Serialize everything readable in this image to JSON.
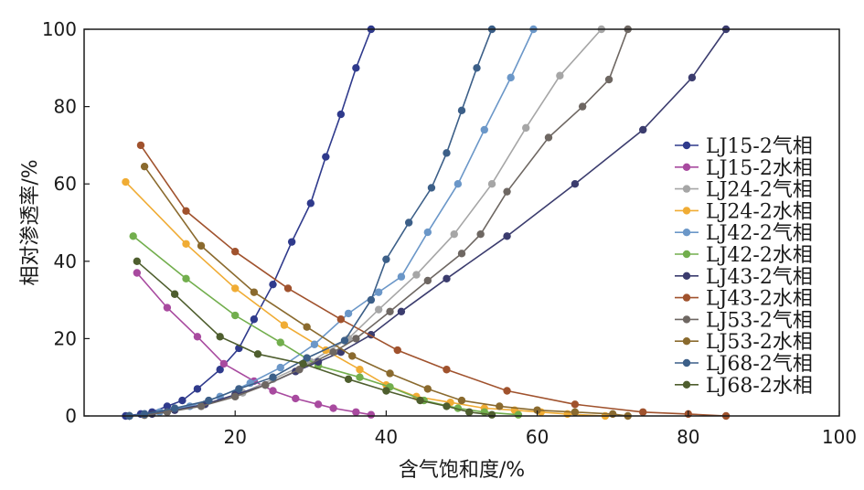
{
  "chart_data": {
    "type": "line",
    "xlabel": "含气饱和度/%",
    "ylabel": "相对渗透率/%",
    "xlim": [
      0,
      100
    ],
    "ylim": [
      0,
      100
    ],
    "xticks": [
      20,
      40,
      60,
      80,
      100
    ],
    "yticks": [
      0,
      20,
      40,
      60,
      80,
      100
    ],
    "grid": false,
    "legend_position": "right",
    "series": [
      {
        "name": "LJ15-2气相",
        "color": "#2f3a8c",
        "x": [
          5.5,
          7.5,
          9,
          11,
          13,
          15,
          18,
          20.5,
          22.5,
          25,
          27.5,
          30,
          32,
          34,
          36,
          38
        ],
        "y": [
          0,
          0.5,
          1,
          2.5,
          4,
          7,
          12,
          17.5,
          25,
          34,
          45,
          55,
          67,
          78,
          90,
          100
        ]
      },
      {
        "name": "LJ15-2水相",
        "color": "#a84a9f",
        "x": [
          7,
          11,
          15,
          18.5,
          22.5,
          25,
          28,
          31,
          33,
          36,
          38
        ],
        "y": [
          37,
          28,
          20.5,
          13.5,
          9,
          6.5,
          4.5,
          3,
          2,
          1,
          0.3
        ]
      },
      {
        "name": "LJ24-2气相",
        "color": "#a6a6a6",
        "x": [
          6,
          8,
          12,
          16,
          21,
          25,
          30,
          35,
          39,
          44,
          49,
          54,
          58.5,
          63,
          68.5
        ],
        "y": [
          0,
          0.3,
          1.5,
          3,
          6,
          9.5,
          14,
          20,
          27.5,
          36.5,
          47,
          60,
          74.5,
          88,
          100
        ]
      },
      {
        "name": "LJ24-2水相",
        "color": "#f0ac34",
        "x": [
          5.5,
          13.5,
          20,
          26.5,
          32,
          36.5,
          40,
          44,
          48.5,
          53,
          57,
          60.5,
          64,
          69
        ],
        "y": [
          60.5,
          44.5,
          33,
          23.5,
          17,
          12,
          8,
          5,
          3.5,
          2,
          1.5,
          1,
          0.5,
          0
        ]
      },
      {
        "name": "LJ42-2气相",
        "color": "#6b97c8",
        "x": [
          6,
          8,
          10,
          14,
          18,
          22,
          26,
          30.5,
          35,
          39,
          42,
          45.5,
          49.5,
          53,
          56.5,
          59.5
        ],
        "y": [
          0,
          0.5,
          1,
          2.5,
          5,
          8.5,
          12.5,
          18.5,
          26.5,
          32,
          36,
          47.5,
          60,
          74,
          87.5,
          100
        ]
      },
      {
        "name": "LJ42-2水相",
        "color": "#72ae4d",
        "x": [
          6.5,
          13.5,
          20,
          26,
          31,
          36.5,
          40.5,
          45,
          49.5,
          53,
          57.5
        ],
        "y": [
          46.5,
          35.5,
          26,
          19,
          13,
          10,
          7.5,
          4,
          2,
          1,
          0.3
        ]
      },
      {
        "name": "LJ43-2气相",
        "color": "#3b3c6e",
        "x": [
          6,
          9,
          12,
          16,
          20,
          24,
          28,
          31,
          34,
          38,
          42,
          48,
          56,
          65,
          74,
          80.5,
          85
        ],
        "y": [
          0,
          0.5,
          1.5,
          3,
          5.5,
          8,
          11.5,
          14,
          16.5,
          21,
          27,
          35.5,
          46.5,
          60,
          74,
          87.5,
          100
        ]
      },
      {
        "name": "LJ43-2水相",
        "color": "#a0522d",
        "x": [
          7.5,
          13.5,
          20,
          27,
          34,
          41.5,
          48,
          56,
          65,
          74,
          80,
          85
        ],
        "y": [
          70,
          53,
          42.5,
          33,
          25,
          17,
          12,
          6.5,
          3,
          1,
          0.5,
          0
        ]
      },
      {
        "name": "LJ53-2气相",
        "color": "#6e6762",
        "x": [
          6,
          8,
          11,
          15.5,
          20,
          24,
          28.5,
          33,
          36,
          40.5,
          45.5,
          50,
          52.5,
          56,
          61.5,
          66,
          69.5,
          72
        ],
        "y": [
          0,
          0.2,
          1,
          2.5,
          5,
          8,
          12,
          16.5,
          20,
          27,
          35,
          42,
          47,
          58,
          72,
          80,
          87,
          100
        ]
      },
      {
        "name": "LJ53-2水相",
        "color": "#8a6a2e",
        "x": [
          8,
          15.5,
          22.5,
          29.5,
          35.5,
          40.5,
          45.5,
          50,
          55,
          60,
          65,
          70,
          72
        ],
        "y": [
          64.5,
          44,
          32,
          23,
          15.5,
          11,
          7,
          4,
          2.5,
          1.5,
          1,
          0.5,
          0
        ]
      },
      {
        "name": "LJ68-2气相",
        "color": "#3c5f88",
        "x": [
          6,
          8,
          12,
          16.5,
          20.5,
          25,
          29.5,
          34.5,
          38,
          40,
          43,
          46,
          48,
          50,
          52,
          54
        ],
        "y": [
          0,
          0.5,
          2,
          4,
          7,
          10,
          15,
          19.5,
          30,
          40.5,
          50,
          59,
          68,
          79,
          90,
          100
        ]
      },
      {
        "name": "LJ68-2水相",
        "color": "#4e5e2e",
        "x": [
          7,
          12,
          18,
          23,
          29,
          35,
          40,
          44.5,
          48,
          51,
          54
        ],
        "y": [
          40,
          31.5,
          20.5,
          16,
          13.5,
          9.5,
          6.5,
          4,
          2.5,
          1,
          0.3
        ]
      }
    ]
  }
}
